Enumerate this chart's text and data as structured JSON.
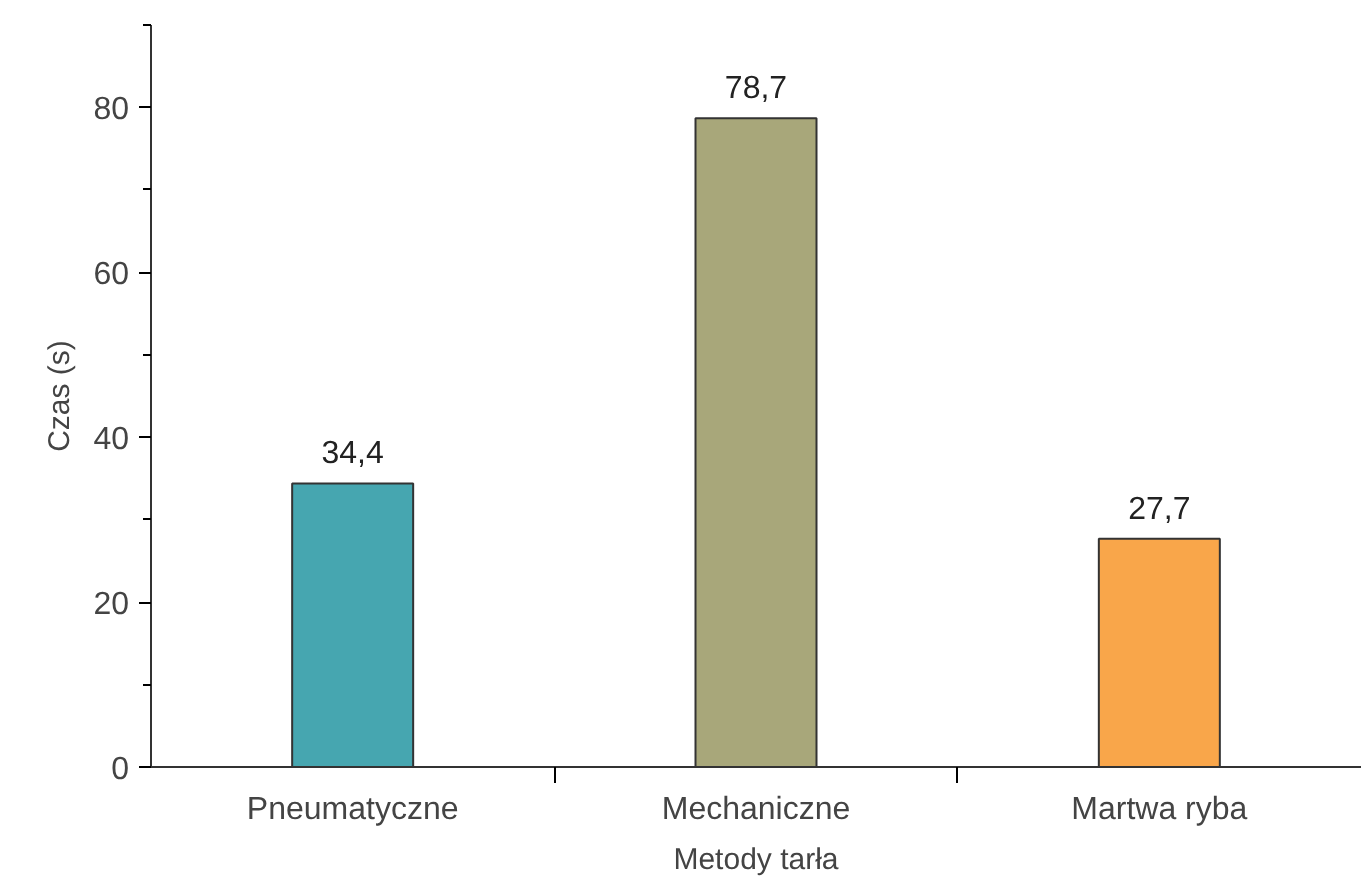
{
  "chart_data": {
    "type": "bar",
    "xlabel": "Metody tarła",
    "ylabel": "Czas (s)",
    "categories": [
      "Pneumatyczne",
      "Mechaniczne",
      "Martwa ryba"
    ],
    "values": [
      34.4,
      78.7,
      27.7
    ],
    "colors": [
      "#46a6b0",
      "#a8a77a",
      "#f9a64a"
    ],
    "value_labels": [
      "34,4",
      "78,7",
      "27,7"
    ],
    "ylim": [
      0,
      90
    ],
    "yticks": [
      0,
      {
        "value": 10,
        "label": null
      },
      20,
      {
        "value": 30,
        "label": null
      },
      40,
      {
        "value": 50,
        "label": null
      },
      60,
      {
        "value": 70,
        "label": null
      },
      80,
      {
        "value": 90,
        "label": null
      }
    ],
    "grid": false
  }
}
